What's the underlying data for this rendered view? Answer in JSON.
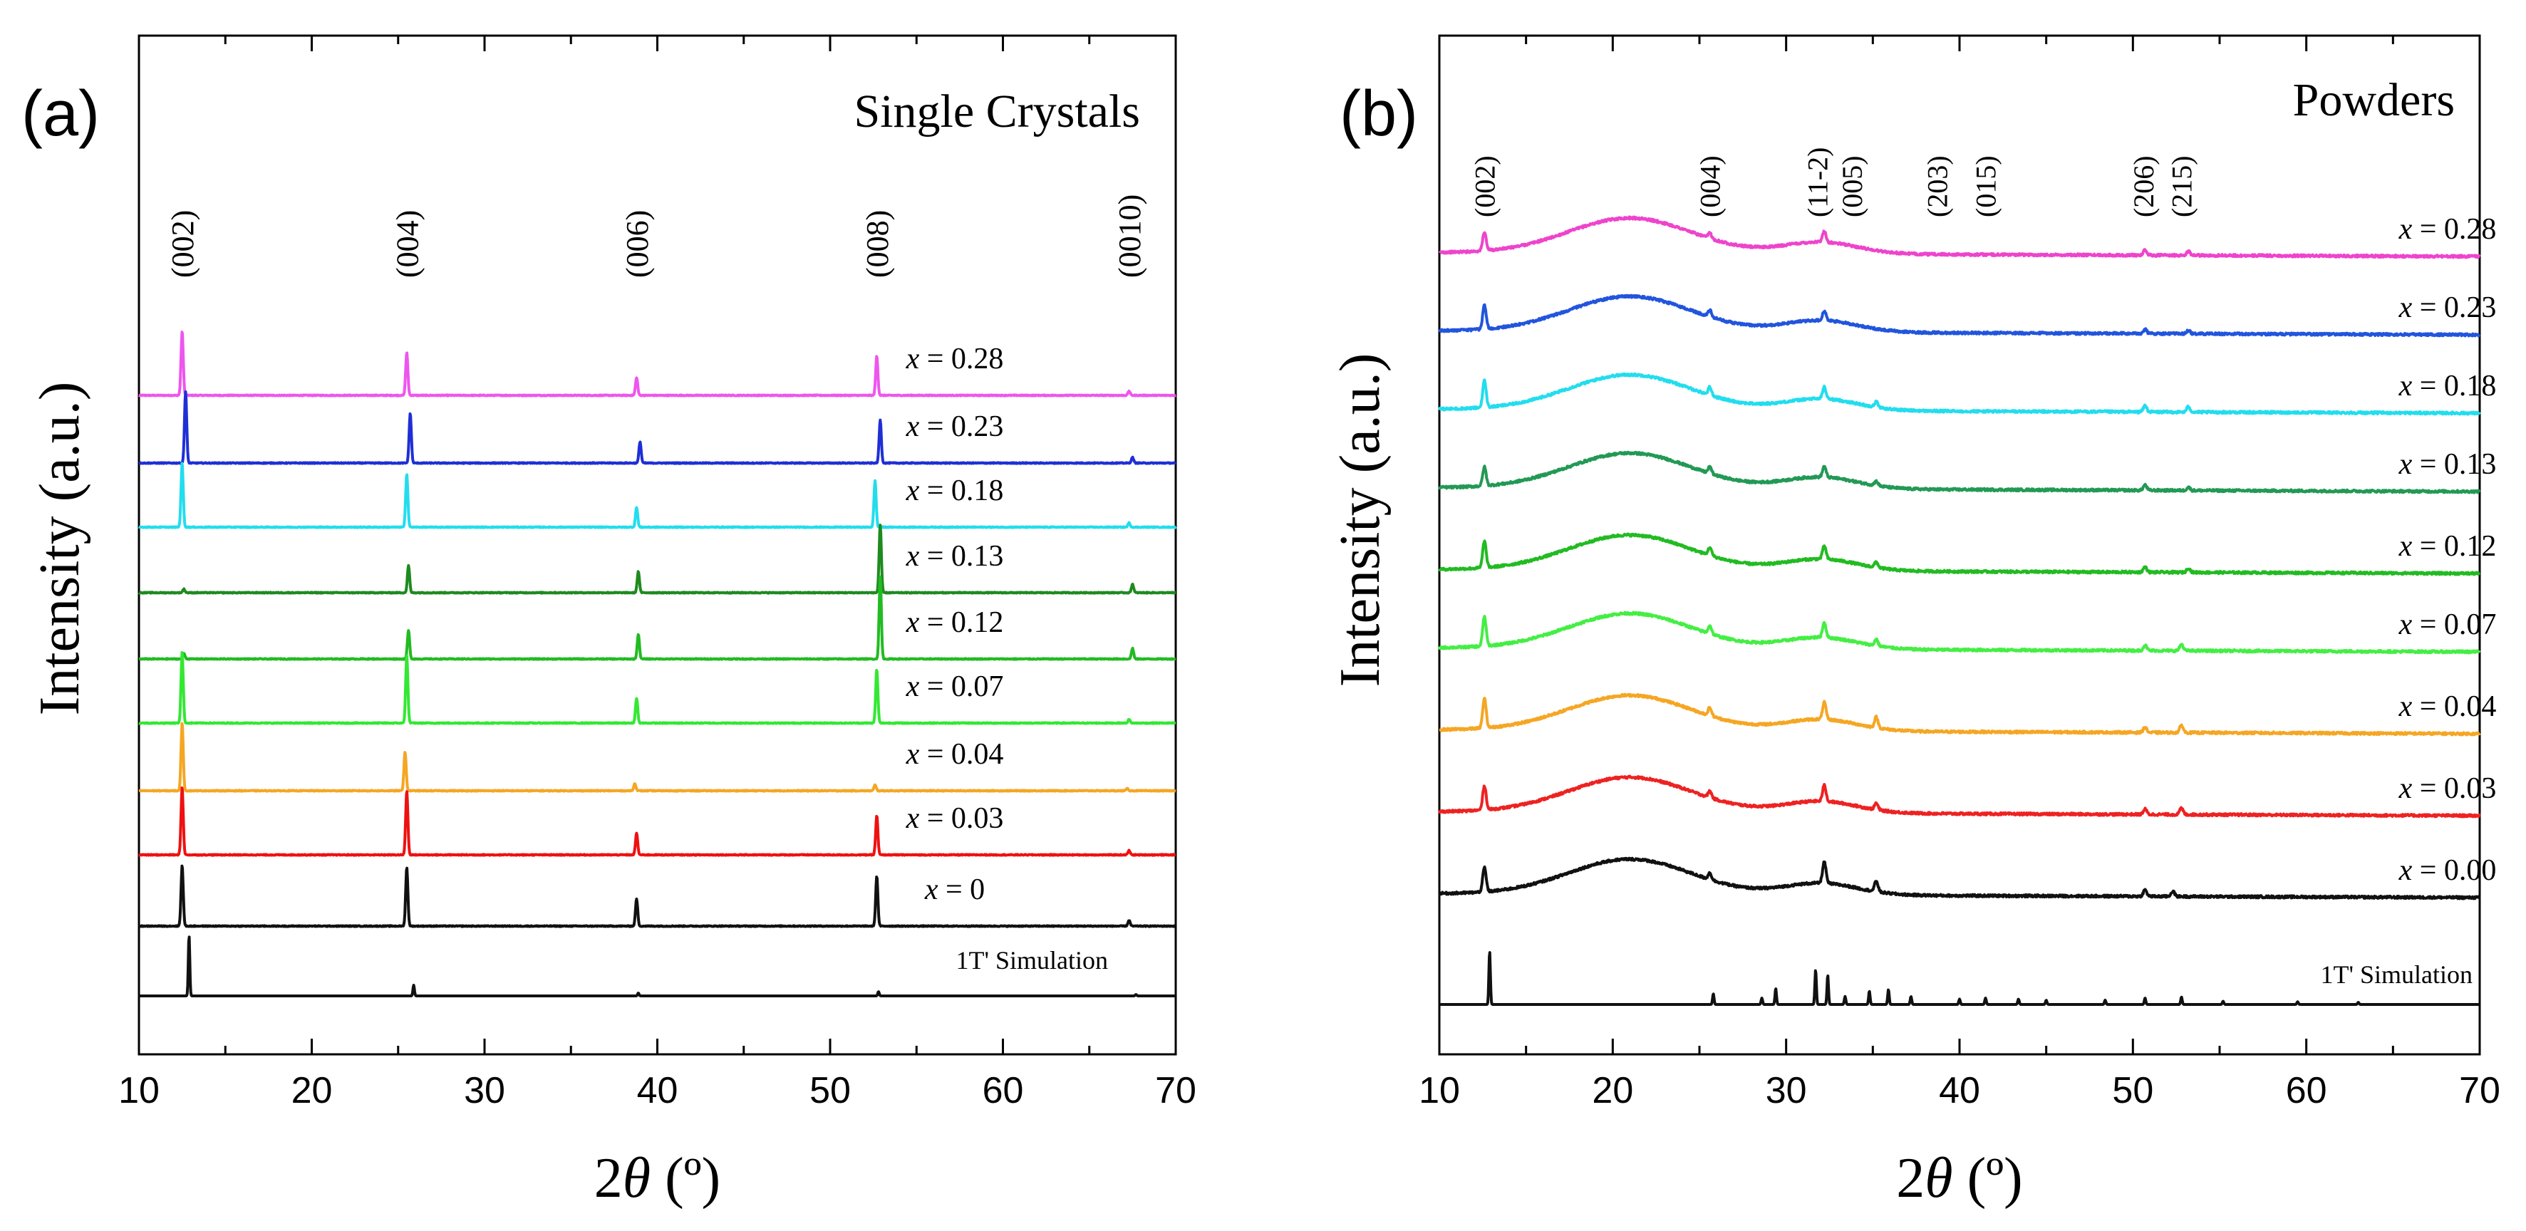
{
  "chart_data": [
    {
      "type": "line",
      "panel_label": "(a)",
      "title": "Single Crystals",
      "xlabel_prefix": "2",
      "xlabel_symbol": "θ",
      "xlabel_unit": " (º)",
      "ylabel": "Intensity (a.u.)",
      "xlim": [
        10,
        70
      ],
      "xticks": [
        "10",
        "20",
        "30",
        "40",
        "50",
        "60",
        "70"
      ],
      "peak_labels": [
        {
          "text": "(002)",
          "x": 12.5
        },
        {
          "text": "(004)",
          "x": 25.5
        },
        {
          "text": "(006)",
          "x": 38.8
        },
        {
          "text": "(008)",
          "x": 52.7
        },
        {
          "text": "(0010)",
          "x": 67.3
        }
      ],
      "series": [
        {
          "name": "x = 0.28",
          "prefix": "x",
          "label_value": " = 0.28",
          "color": "#ee55ee",
          "peaks": [
            [
              12.5,
              0.9
            ],
            [
              25.5,
              0.6
            ],
            [
              38.8,
              0.25
            ],
            [
              52.7,
              0.55
            ],
            [
              67.3,
              0.06
            ]
          ]
        },
        {
          "name": "x = 0.23",
          "prefix": "x",
          "label_value": " = 0.23",
          "color": "#1f2fd6",
          "peaks": [
            [
              12.7,
              1.0
            ],
            [
              25.7,
              0.7
            ],
            [
              39.0,
              0.3
            ],
            [
              52.9,
              0.6
            ],
            [
              67.5,
              0.08
            ]
          ]
        },
        {
          "name": "x = 0.18",
          "prefix": "x",
          "label_value": " = 0.18",
          "color": "#22ddee",
          "peaks": [
            [
              12.5,
              0.9
            ],
            [
              25.5,
              0.75
            ],
            [
              38.8,
              0.28
            ],
            [
              52.6,
              0.65
            ],
            [
              67.3,
              0.06
            ]
          ]
        },
        {
          "name": "x = 0.13",
          "prefix": "x",
          "label_value": " = 0.13",
          "color": "#1f8a1f",
          "peaks": [
            [
              12.6,
              0.05
            ],
            [
              25.6,
              0.38
            ],
            [
              38.9,
              0.3
            ],
            [
              52.9,
              0.95
            ],
            [
              67.5,
              0.12
            ]
          ]
        },
        {
          "name": "x = 0.12",
          "prefix": "x",
          "label_value": " = 0.12",
          "color": "#22bb22",
          "peaks": [
            [
              12.6,
              0.08
            ],
            [
              25.6,
              0.4
            ],
            [
              38.9,
              0.35
            ],
            [
              52.9,
              1.15
            ],
            [
              67.5,
              0.15
            ]
          ]
        },
        {
          "name": "x = 0.07",
          "prefix": "x",
          "label_value": " = 0.07",
          "color": "#33e833",
          "peaks": [
            [
              12.5,
              1.0
            ],
            [
              25.5,
              0.95
            ],
            [
              38.8,
              0.35
            ],
            [
              52.7,
              0.75
            ],
            [
              67.3,
              0.05
            ]
          ]
        },
        {
          "name": "x = 0.04",
          "prefix": "x",
          "label_value": " = 0.04",
          "color": "#f5a623",
          "peaks": [
            [
              12.5,
              0.95
            ],
            [
              25.4,
              0.55
            ],
            [
              38.7,
              0.1
            ],
            [
              52.6,
              0.08
            ],
            [
              67.2,
              0.03
            ]
          ]
        },
        {
          "name": "x = 0.03",
          "prefix": "x",
          "label_value": " = 0.03",
          "color": "#ee1111",
          "peaks": [
            [
              12.5,
              0.95
            ],
            [
              25.5,
              0.9
            ],
            [
              38.8,
              0.3
            ],
            [
              52.7,
              0.55
            ],
            [
              67.3,
              0.06
            ]
          ]
        },
        {
          "name": "x = 0",
          "prefix": "x",
          "label_value": " = 0",
          "color": "#111111",
          "peaks": [
            [
              12.5,
              0.85
            ],
            [
              25.5,
              0.82
            ],
            [
              38.8,
              0.38
            ],
            [
              52.7,
              0.7
            ],
            [
              67.3,
              0.08
            ]
          ]
        },
        {
          "name": "1T' Simulation",
          "prefix": "",
          "label_value": "1T' Simulation",
          "color": "#111111",
          "peaks": [
            [
              12.9,
              0.85
            ],
            [
              25.9,
              0.15
            ],
            [
              38.9,
              0.04
            ],
            [
              52.8,
              0.06
            ],
            [
              67.7,
              0.02
            ]
          ]
        }
      ]
    },
    {
      "type": "line",
      "panel_label": "(b)",
      "title": "Powders",
      "xlabel_prefix": "2",
      "xlabel_symbol": "θ",
      "xlabel_unit": " (º)",
      "ylabel": "Intensity (a.u.)",
      "xlim": [
        10,
        70
      ],
      "xticks": [
        "10",
        "20",
        "30",
        "40",
        "50",
        "60",
        "70"
      ],
      "peak_labels": [
        {
          "text": "(002)",
          "x": 12.6
        },
        {
          "text": "(004)",
          "x": 25.6
        },
        {
          "text": "(11-2)",
          "x": 31.8
        },
        {
          "text": "(005)",
          "x": 33.8
        },
        {
          "text": "(203)",
          "x": 38.7
        },
        {
          "text": "(015)",
          "x": 41.5
        },
        {
          "text": "(206)",
          "x": 50.6
        },
        {
          "text": "(215)",
          "x": 52.8
        }
      ],
      "series": [
        {
          "name": "x = 0.28",
          "prefix": "x",
          "label_value": " = 0.28",
          "color": "#ee44cc",
          "peaks": [
            [
              12.6,
              0.35
            ],
            [
              25.6,
              0.1
            ],
            [
              32.2,
              0.2
            ],
            [
              50.7,
              0.1
            ],
            [
              53.2,
              0.08
            ]
          ]
        },
        {
          "name": "x = 0.23",
          "prefix": "x",
          "label_value": " = 0.23",
          "color": "#2255dd",
          "peaks": [
            [
              12.6,
              0.45
            ],
            [
              25.6,
              0.12
            ],
            [
              32.2,
              0.18
            ],
            [
              50.7,
              0.08
            ],
            [
              53.2,
              0.06
            ]
          ]
        },
        {
          "name": "x = 0.18",
          "prefix": "x",
          "label_value": " = 0.18",
          "color": "#22ddee",
          "peaks": [
            [
              12.6,
              0.5
            ],
            [
              25.6,
              0.15
            ],
            [
              32.2,
              0.22
            ],
            [
              35.2,
              0.1
            ],
            [
              50.7,
              0.12
            ],
            [
              53.2,
              0.1
            ]
          ]
        },
        {
          "name": "x = 0.13",
          "prefix": "x",
          "label_value": " = 0.13",
          "color": "#229955",
          "peaks": [
            [
              12.6,
              0.35
            ],
            [
              25.6,
              0.12
            ],
            [
              32.2,
              0.2
            ],
            [
              35.2,
              0.08
            ],
            [
              50.7,
              0.1
            ],
            [
              53.2,
              0.06
            ]
          ]
        },
        {
          "name": "x = 0.12",
          "prefix": "x",
          "label_value": " = 0.12",
          "color": "#22bb22",
          "peaks": [
            [
              12.6,
              0.5
            ],
            [
              25.6,
              0.15
            ],
            [
              32.2,
              0.25
            ],
            [
              35.2,
              0.1
            ],
            [
              50.7,
              0.1
            ],
            [
              53.2,
              0.08
            ]
          ]
        },
        {
          "name": "x = 0.07",
          "prefix": "x",
          "label_value": " = 0.07",
          "color": "#44ee44",
          "peaks": [
            [
              12.6,
              0.55
            ],
            [
              25.6,
              0.15
            ],
            [
              32.2,
              0.28
            ],
            [
              35.2,
              0.12
            ],
            [
              50.7,
              0.1
            ],
            [
              52.8,
              0.12
            ]
          ]
        },
        {
          "name": "x = 0.04",
          "prefix": "x",
          "label_value": " = 0.04",
          "color": "#f5a623",
          "peaks": [
            [
              12.6,
              0.55
            ],
            [
              25.6,
              0.15
            ],
            [
              32.2,
              0.32
            ],
            [
              35.2,
              0.2
            ],
            [
              50.7,
              0.1
            ],
            [
              52.8,
              0.14
            ]
          ]
        },
        {
          "name": "x = 0.03",
          "prefix": "x",
          "label_value": " = 0.03",
          "color": "#ee2222",
          "peaks": [
            [
              12.6,
              0.45
            ],
            [
              25.6,
              0.12
            ],
            [
              32.2,
              0.3
            ],
            [
              35.2,
              0.12
            ],
            [
              50.7,
              0.1
            ],
            [
              52.8,
              0.12
            ]
          ]
        },
        {
          "name": "x = 0.00",
          "prefix": "x",
          "label_value": " = 0.00",
          "color": "#111111",
          "peaks": [
            [
              12.6,
              0.45
            ],
            [
              25.6,
              0.12
            ],
            [
              32.2,
              0.4
            ],
            [
              35.2,
              0.2
            ],
            [
              50.7,
              0.12
            ],
            [
              52.3,
              0.1
            ]
          ]
        },
        {
          "name": "1T' Simulation",
          "prefix": "",
          "label_value": "1T' Simulation",
          "color": "#111111",
          "peaks": [
            [
              12.9,
              1.0
            ],
            [
              25.8,
              0.2
            ],
            [
              28.6,
              0.12
            ],
            [
              29.4,
              0.3
            ],
            [
              31.7,
              0.65
            ],
            [
              32.4,
              0.55
            ],
            [
              33.4,
              0.15
            ],
            [
              34.8,
              0.25
            ],
            [
              35.9,
              0.28
            ],
            [
              37.2,
              0.15
            ],
            [
              40.0,
              0.1
            ],
            [
              41.5,
              0.12
            ],
            [
              43.4,
              0.1
            ],
            [
              45.0,
              0.08
            ],
            [
              48.4,
              0.08
            ],
            [
              50.7,
              0.12
            ],
            [
              52.8,
              0.14
            ],
            [
              55.2,
              0.06
            ],
            [
              59.5,
              0.05
            ],
            [
              63.0,
              0.04
            ]
          ]
        }
      ]
    }
  ]
}
